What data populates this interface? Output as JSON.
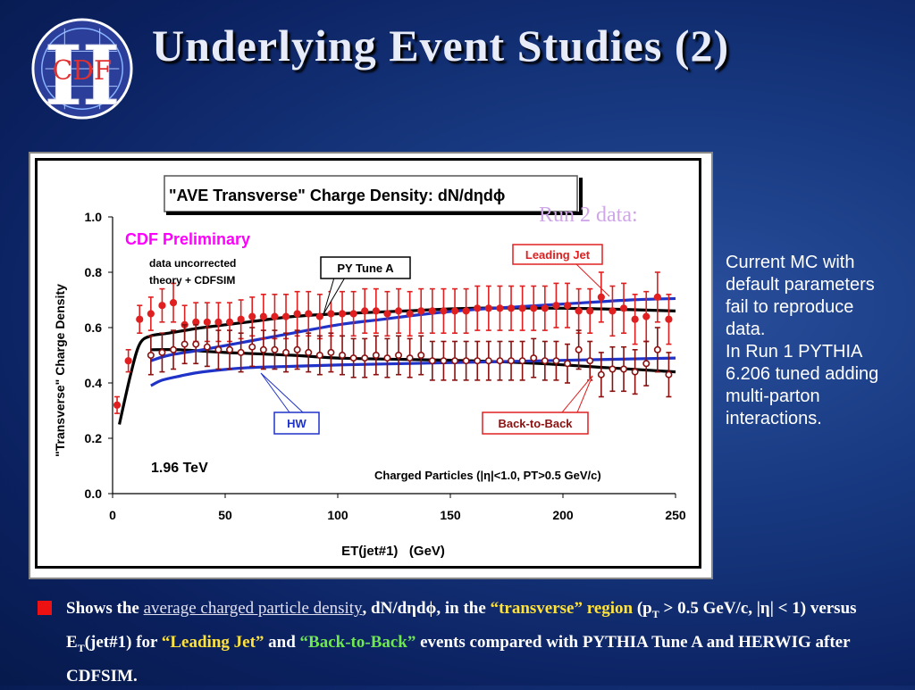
{
  "slide": {
    "title": "Underlying Event Studies (2)",
    "logo": {
      "outer": "II",
      "inner": "CDF"
    },
    "run2_label": "Run 2 data:",
    "side_note": [
      "Current MC with",
      "default parameters",
      "fail to reproduce",
      "data.",
      "In Run 1 PYTHIA",
      "6.206 tuned adding",
      "multi-parton",
      "interactions."
    ],
    "bullet": {
      "t1": "Shows the ",
      "t2": "average charged particle density",
      "t3": ", dN/dηdϕ, in the ",
      "t4": "“transverse” region",
      "t5": " (p",
      "t5sub": "T",
      "t6": " > 0.5 GeV/c, |η| < 1) versus E",
      "t6sub": "T",
      "t7": "(jet#1) for ",
      "t8": "“Leading Jet”",
      "t9": " and ",
      "t10": "“Back-to-Back”",
      "t11": " events compared with PYTHIA Tune A and HERWIG after CDFSIM."
    },
    "colors": {
      "accent_red": "#ee1111",
      "yellow": "#ffe23a",
      "green": "#6ee84e"
    }
  },
  "chart_data": {
    "type": "scatter",
    "title": "\"AVE Transverse\" Charge Density: dN/dηdϕ",
    "xlabel": "ET(jet#1)   (GeV)",
    "ylabel": "\"Transverse\" Charge Density",
    "xlim": [
      0,
      250
    ],
    "ylim": [
      0,
      1.0
    ],
    "xticks": [
      "0",
      "50",
      "100",
      "150",
      "200",
      "250"
    ],
    "yticks": [
      "0.0",
      "0.2",
      "0.4",
      "0.6",
      "0.8",
      "1.0"
    ],
    "annotations": {
      "prelim": "CDF Preliminary",
      "uncorr1": "data uncorrected",
      "uncorr2": "theory + CDFSIM",
      "energy": "1.96 TeV",
      "cuts": "Charged Particles (|η|<1.0, PT>0.5 GeV/c)"
    },
    "labels": {
      "leading_jet": "Leading Jet",
      "back_to_back": "Back-to-Back",
      "py_tune_a": "PY Tune A",
      "hw": "HW"
    },
    "series": [
      {
        "name": "Leading Jet",
        "color": "#e02020",
        "marker": "filled",
        "x": [
          2,
          7,
          12,
          17,
          22,
          27,
          32,
          37,
          42,
          47,
          52,
          57,
          62,
          67,
          72,
          77,
          82,
          87,
          92,
          97,
          102,
          107,
          112,
          117,
          122,
          127,
          132,
          137,
          142,
          147,
          152,
          157,
          162,
          167,
          172,
          177,
          182,
          187,
          192,
          197,
          202,
          207,
          212,
          217,
          222,
          227,
          232,
          237,
          242,
          247
        ],
        "y": [
          0.32,
          0.48,
          0.63,
          0.65,
          0.68,
          0.69,
          0.61,
          0.62,
          0.62,
          0.62,
          0.62,
          0.63,
          0.64,
          0.64,
          0.64,
          0.64,
          0.65,
          0.65,
          0.64,
          0.65,
          0.65,
          0.65,
          0.66,
          0.66,
          0.65,
          0.66,
          0.65,
          0.66,
          0.66,
          0.66,
          0.66,
          0.66,
          0.67,
          0.67,
          0.67,
          0.67,
          0.67,
          0.67,
          0.67,
          0.68,
          0.68,
          0.66,
          0.66,
          0.71,
          0.66,
          0.67,
          0.63,
          0.64,
          0.71,
          0.63
        ],
        "err": [
          0.03,
          0.04,
          0.05,
          0.06,
          0.06,
          0.07,
          0.07,
          0.07,
          0.07,
          0.07,
          0.07,
          0.07,
          0.07,
          0.08,
          0.08,
          0.08,
          0.08,
          0.08,
          0.08,
          0.08,
          0.08,
          0.08,
          0.08,
          0.08,
          0.08,
          0.08,
          0.08,
          0.08,
          0.08,
          0.08,
          0.08,
          0.08,
          0.08,
          0.08,
          0.08,
          0.08,
          0.08,
          0.08,
          0.08,
          0.08,
          0.08,
          0.08,
          0.08,
          0.09,
          0.09,
          0.09,
          0.09,
          0.09,
          0.09,
          0.09
        ]
      },
      {
        "name": "Back-to-Back",
        "color": "#8b1010",
        "marker": "open",
        "x": [
          17,
          22,
          27,
          32,
          37,
          42,
          47,
          52,
          57,
          62,
          67,
          72,
          77,
          82,
          87,
          92,
          97,
          102,
          107,
          112,
          117,
          122,
          127,
          132,
          137,
          142,
          147,
          152,
          157,
          162,
          167,
          172,
          177,
          182,
          187,
          192,
          197,
          202,
          207,
          212,
          217,
          222,
          227,
          232,
          237,
          242,
          247
        ],
        "y": [
          0.5,
          0.51,
          0.52,
          0.54,
          0.54,
          0.53,
          0.52,
          0.52,
          0.51,
          0.53,
          0.52,
          0.52,
          0.51,
          0.52,
          0.51,
          0.5,
          0.51,
          0.5,
          0.49,
          0.49,
          0.5,
          0.49,
          0.5,
          0.49,
          0.5,
          0.48,
          0.48,
          0.48,
          0.48,
          0.48,
          0.48,
          0.48,
          0.48,
          0.48,
          0.49,
          0.48,
          0.48,
          0.47,
          0.52,
          0.48,
          0.43,
          0.45,
          0.45,
          0.44,
          0.47,
          0.52,
          0.43
        ],
        "err": [
          0.07,
          0.07,
          0.07,
          0.07,
          0.07,
          0.07,
          0.07,
          0.07,
          0.07,
          0.07,
          0.07,
          0.07,
          0.07,
          0.07,
          0.07,
          0.07,
          0.07,
          0.07,
          0.07,
          0.07,
          0.07,
          0.07,
          0.07,
          0.07,
          0.07,
          0.07,
          0.07,
          0.07,
          0.07,
          0.07,
          0.07,
          0.07,
          0.07,
          0.07,
          0.07,
          0.07,
          0.07,
          0.07,
          0.07,
          0.07,
          0.08,
          0.08,
          0.08,
          0.08,
          0.08,
          0.08,
          0.08
        ]
      }
    ],
    "curves": [
      {
        "name": "PY Tune A",
        "color": "#000000",
        "x": [
          3,
          8,
          12,
          17,
          25,
          40,
          60,
          80,
          100,
          130,
          160,
          200,
          230,
          250
        ],
        "y": [
          0.25,
          0.43,
          0.54,
          0.57,
          0.58,
          0.6,
          0.62,
          0.64,
          0.65,
          0.66,
          0.67,
          0.67,
          0.665,
          0.66
        ]
      },
      {
        "name": "PY Tune A",
        "color": "#000000",
        "x": [
          17,
          30,
          50,
          80,
          100,
          130,
          160,
          190,
          220,
          250
        ],
        "y": [
          0.52,
          0.52,
          0.51,
          0.5,
          0.49,
          0.485,
          0.48,
          0.47,
          0.455,
          0.44
        ]
      },
      {
        "name": "HW",
        "color": "#1f33c8",
        "x": [
          17,
          25,
          40,
          60,
          80,
          100,
          120,
          140,
          160,
          180,
          200,
          230,
          250
        ],
        "y": [
          0.48,
          0.5,
          0.52,
          0.55,
          0.58,
          0.61,
          0.63,
          0.65,
          0.665,
          0.675,
          0.685,
          0.7,
          0.705
        ]
      },
      {
        "name": "HW",
        "color": "#1f33c8",
        "x": [
          17,
          22,
          30,
          40,
          60,
          80,
          100,
          130,
          160,
          190,
          220,
          250
        ],
        "y": [
          0.39,
          0.41,
          0.425,
          0.44,
          0.455,
          0.46,
          0.465,
          0.47,
          0.475,
          0.48,
          0.485,
          0.49
        ]
      }
    ]
  }
}
